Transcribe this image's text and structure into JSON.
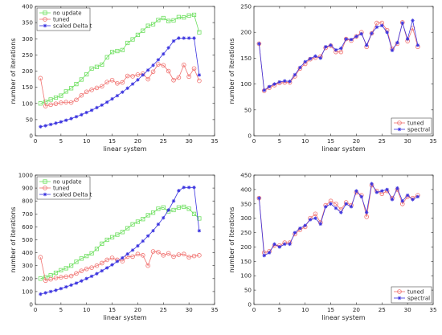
{
  "colors": {
    "green": "#6ddf5f",
    "red": "#f0706e",
    "blue": "#3a33df",
    "axis": "#262626"
  },
  "chart_data": [
    {
      "type": "line",
      "xlabel": "linear system",
      "ylabel": "number of iterations",
      "xlim": [
        0,
        35
      ],
      "ylim": [
        0,
        400
      ],
      "xticks": [
        0,
        5,
        10,
        15,
        20,
        25,
        30,
        35
      ],
      "yticks": [
        0,
        50,
        100,
        150,
        200,
        250,
        300,
        350,
        400
      ],
      "legend": "top-left",
      "x": [
        1,
        2,
        3,
        4,
        5,
        6,
        7,
        8,
        9,
        10,
        11,
        12,
        13,
        14,
        15,
        16,
        17,
        18,
        19,
        20,
        21,
        22,
        23,
        24,
        25,
        26,
        27,
        28,
        29,
        30,
        31,
        32
      ],
      "series": [
        {
          "name": "no update",
          "color": "green",
          "marker": "square",
          "values": [
            100,
            105,
            112,
            118,
            124,
            137,
            147,
            160,
            174,
            190,
            208,
            213,
            220,
            243,
            259,
            262,
            265,
            287,
            298,
            312,
            325,
            340,
            345,
            358,
            364,
            355,
            357,
            367,
            366,
            372,
            374,
            320
          ]
        },
        {
          "name": "tuned",
          "color": "red",
          "marker": "circle",
          "values": [
            178,
            92,
            96,
            99,
            102,
            104,
            103,
            111,
            125,
            136,
            142,
            148,
            153,
            166,
            172,
            162,
            165,
            185,
            184,
            189,
            192,
            175,
            198,
            221,
            218,
            200,
            172,
            180,
            219,
            183,
            208,
            170
          ]
        },
        {
          "name": "scaled Delta t",
          "color": "blue",
          "marker": "star",
          "values": [
            28,
            31,
            35,
            39,
            43,
            48,
            53,
            59,
            65,
            72,
            79,
            87,
            95,
            104,
            114,
            124,
            135,
            147,
            160,
            173,
            188,
            203,
            218,
            235,
            253,
            272,
            293,
            302,
            302,
            302,
            302,
            188
          ]
        }
      ]
    },
    {
      "type": "line",
      "xlabel": "linear system",
      "ylabel": "number of iterations",
      "xlim": [
        0,
        35
      ],
      "ylim": [
        0,
        250
      ],
      "xticks": [
        0,
        5,
        10,
        15,
        20,
        25,
        30,
        35
      ],
      "yticks": [
        0,
        50,
        100,
        150,
        200,
        250
      ],
      "legend": "bottom-right",
      "x": [
        1,
        2,
        3,
        4,
        5,
        6,
        7,
        8,
        9,
        10,
        11,
        12,
        13,
        14,
        15,
        16,
        17,
        18,
        19,
        20,
        21,
        22,
        23,
        24,
        25,
        26,
        27,
        28,
        29,
        30,
        31,
        32
      ],
      "series": [
        {
          "name": "tuned",
          "color": "red",
          "marker": "circle",
          "values": [
            178,
            87,
            93,
            98,
            102,
            103,
            103,
            115,
            130,
            139,
            148,
            151,
            153,
            170,
            174,
            162,
            162,
            187,
            184,
            192,
            200,
            172,
            198,
            218,
            218,
            204,
            168,
            178,
            219,
            183,
            208,
            172
          ]
        },
        {
          "name": "spectral",
          "color": "blue",
          "marker": "star",
          "values": [
            178,
            88,
            95,
            100,
            104,
            106,
            105,
            118,
            132,
            143,
            149,
            154,
            150,
            172,
            175,
            166,
            169,
            187,
            186,
            192,
            197,
            175,
            198,
            210,
            213,
            200,
            165,
            180,
            218,
            187,
            223,
            175
          ]
        }
      ]
    },
    {
      "type": "line",
      "xlabel": "linear system",
      "ylabel": "number of iterations",
      "xlim": [
        0,
        35
      ],
      "ylim": [
        0,
        1000
      ],
      "xticks": [
        0,
        5,
        10,
        15,
        20,
        25,
        30,
        35
      ],
      "yticks": [
        0,
        100,
        200,
        300,
        400,
        500,
        600,
        700,
        800,
        900,
        1000
      ],
      "legend": "top-left",
      "x": [
        1,
        2,
        3,
        4,
        5,
        6,
        7,
        8,
        9,
        10,
        11,
        12,
        13,
        14,
        15,
        16,
        17,
        18,
        19,
        20,
        21,
        22,
        23,
        24,
        25,
        26,
        27,
        28,
        29,
        30,
        31,
        32
      ],
      "series": [
        {
          "name": "no update",
          "color": "green",
          "marker": "square",
          "values": [
            200,
            210,
            225,
            245,
            265,
            280,
            300,
            330,
            355,
            375,
            395,
            430,
            470,
            500,
            520,
            540,
            560,
            590,
            620,
            640,
            660,
            690,
            710,
            740,
            750,
            720,
            730,
            750,
            755,
            740,
            700,
            665
          ]
        },
        {
          "name": "tuned",
          "color": "red",
          "marker": "circle",
          "values": [
            365,
            185,
            195,
            205,
            210,
            215,
            220,
            240,
            260,
            275,
            285,
            300,
            320,
            345,
            360,
            345,
            335,
            370,
            370,
            390,
            380,
            300,
            410,
            405,
            380,
            395,
            370,
            385,
            390,
            365,
            375,
            380
          ]
        },
        {
          "name": "scaled Delta t",
          "color": "blue",
          "marker": "star",
          "values": [
            80,
            90,
            100,
            110,
            123,
            136,
            150,
            165,
            182,
            200,
            218,
            238,
            260,
            283,
            307,
            333,
            360,
            390,
            420,
            453,
            490,
            530,
            570,
            620,
            670,
            730,
            800,
            880,
            905,
            905,
            905,
            570
          ]
        }
      ]
    },
    {
      "type": "line",
      "xlabel": "linear system",
      "ylabel": "number of iterations",
      "xlim": [
        0,
        35
      ],
      "ylim": [
        0,
        450
      ],
      "xticks": [
        0,
        5,
        10,
        15,
        20,
        25,
        30,
        35
      ],
      "yticks": [
        0,
        50,
        100,
        150,
        200,
        250,
        300,
        350,
        400,
        450
      ],
      "legend": "bottom-right",
      "x": [
        1,
        2,
        3,
        4,
        5,
        6,
        7,
        8,
        9,
        10,
        11,
        12,
        13,
        14,
        15,
        16,
        17,
        18,
        19,
        20,
        21,
        22,
        23,
        24,
        25,
        26,
        27,
        28,
        29,
        30,
        31,
        32
      ],
      "series": [
        {
          "name": "tuned",
          "color": "red",
          "marker": "circle",
          "values": [
            370,
            180,
            185,
            205,
            205,
            215,
            215,
            245,
            260,
            270,
            300,
            315,
            285,
            345,
            360,
            350,
            330,
            355,
            345,
            390,
            380,
            305,
            415,
            395,
            385,
            395,
            370,
            400,
            350,
            375,
            370,
            380
          ]
        },
        {
          "name": "spectral",
          "color": "blue",
          "marker": "star",
          "values": [
            370,
            170,
            180,
            210,
            200,
            210,
            210,
            250,
            265,
            275,
            295,
            300,
            280,
            340,
            350,
            335,
            320,
            350,
            340,
            395,
            375,
            320,
            420,
            390,
            395,
            400,
            365,
            405,
            360,
            380,
            365,
            375
          ]
        }
      ]
    }
  ]
}
